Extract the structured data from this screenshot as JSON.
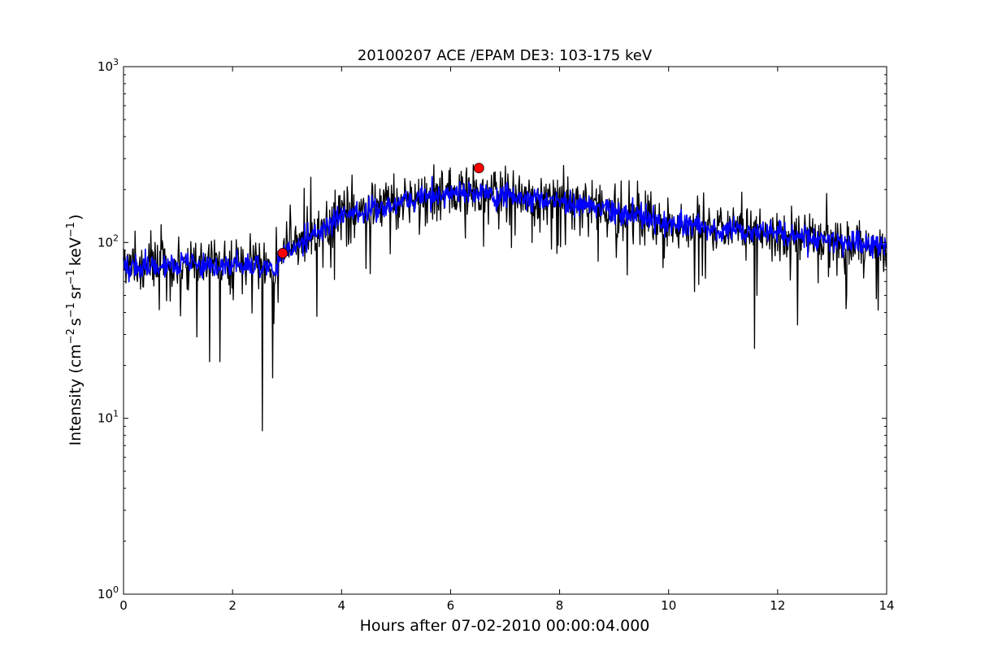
{
  "chart_data": {
    "type": "line",
    "title": "20100207 ACE /EPAM DE3: 103-175 keV",
    "xlabel": "Hours after 07-02-2010 00:00:04.000",
    "ylabel_parts": {
      "prefix": "Intensity (cm",
      "e1": "−2",
      "s": "s",
      "e2": "−1",
      "sr": "sr",
      "e3": "−1",
      "kev": "keV",
      "e4": "−1",
      "suffix": ")"
    },
    "xlim": [
      0,
      14
    ],
    "ylim": [
      1,
      1000
    ],
    "yscale": "log",
    "grid": false,
    "x_ticks": [
      0,
      2,
      4,
      6,
      8,
      10,
      12,
      14
    ],
    "x_tick_labels": [
      "0",
      "2",
      "4",
      "6",
      "8",
      "10",
      "12",
      "14"
    ],
    "y_ticks": [
      1,
      10,
      100,
      1000
    ],
    "y_tick_base": "10",
    "y_tick_exponents": [
      "0",
      "1",
      "2",
      "3"
    ],
    "trend": {
      "x": [
        0,
        0.5,
        1.0,
        1.5,
        2.0,
        2.5,
        2.8,
        3.0,
        3.5,
        4.0,
        4.5,
        5.0,
        5.5,
        6.0,
        6.5,
        7.0,
        7.5,
        8.0,
        8.5,
        9.0,
        9.5,
        10.0,
        10.5,
        11.0,
        11.5,
        12.0,
        12.5,
        13.0,
        13.5,
        14.0
      ],
      "y": [
        72,
        74,
        75,
        73,
        74,
        72,
        72,
        90,
        112,
        140,
        152,
        170,
        182,
        188,
        195,
        182,
        178,
        170,
        160,
        150,
        140,
        130,
        123,
        118,
        114,
        112,
        108,
        103,
        98,
        95
      ]
    },
    "dips": [
      {
        "x": 1.58,
        "y": 21
      },
      {
        "x": 1.77,
        "y": 21
      },
      {
        "x": 2.55,
        "y": 8.5
      },
      {
        "x": 2.73,
        "y": 17
      },
      {
        "x": 1.35,
        "y": 29
      },
      {
        "x": 11.58,
        "y": 25
      },
      {
        "x": 12.37,
        "y": 34
      },
      {
        "x": 3.55,
        "y": 38
      },
      {
        "x": 13.25,
        "y": 42
      }
    ],
    "series": [
      {
        "color": "#000000",
        "linewidth": 1.3,
        "noise_sigma": 0.17,
        "points": 1260,
        "seed": 7
      },
      {
        "color": "#0000ff",
        "linewidth": 1.6,
        "noise_sigma": 0.08,
        "points": 1260,
        "seed": 19
      }
    ],
    "markers": [
      {
        "x": 2.92,
        "y": 87,
        "color": "#ff0000"
      },
      {
        "x": 6.52,
        "y": 265,
        "color": "#ff0000"
      }
    ]
  }
}
